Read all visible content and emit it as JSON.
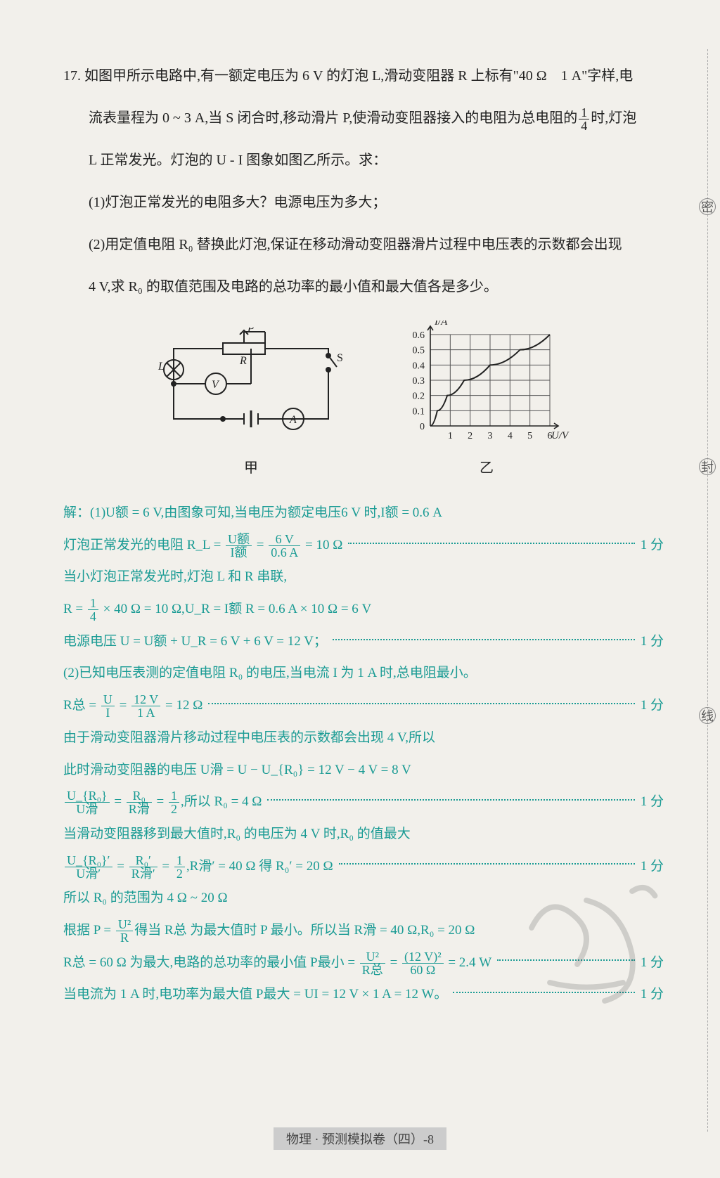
{
  "problem": {
    "number": "17.",
    "lines": [
      "如图甲所示电路中,有一额定电压为 6 V 的灯泡 L,滑动变阻器 R 上标有\"40 Ω　1 A\"字样,电",
      "流表量程为 0 ~ 3 A,当 S 闭合时,移动滑片 P,使滑动变阻器接入的电阻为总电阻的",
      "时,灯泡",
      "L 正常发光。灯泡的 U - I 图象如图乙所示。求：",
      "(1)灯泡正常发光的电阻多大？电源电压为多大；",
      "(2)用定值电阻 R₀ 替换此灯泡,保证在移动滑动变阻器滑片过程中电压表的示数都会出现",
      "4 V,求 R₀ 的取值范围及电路的总功率的最小值和最大值各是多少。"
    ],
    "frac_1_4": {
      "num": "1",
      "den": "4"
    }
  },
  "diagram_labels": {
    "left": "甲",
    "right": "乙"
  },
  "circuit": {
    "labels": {
      "L": "L",
      "V": "V",
      "A": "A",
      "P": "P",
      "R": "R",
      "S": "S"
    },
    "stroke": "#222",
    "stroke_width": 2
  },
  "graph": {
    "y_label": "I/A",
    "x_label": "U/V",
    "axis_color": "#222",
    "grid_color": "#555",
    "y_ticks": [
      "0.6",
      "0.5",
      "0.4",
      "0.3",
      "0.2",
      "0.1",
      "0"
    ],
    "x_ticks": [
      "1",
      "2",
      "3",
      "4",
      "5",
      "6"
    ],
    "curve_points": [
      [
        0,
        0
      ],
      [
        0.35,
        0.1
      ],
      [
        0.85,
        0.2
      ],
      [
        1.7,
        0.3
      ],
      [
        3.0,
        0.4
      ],
      [
        4.5,
        0.5
      ],
      [
        6.0,
        0.6
      ]
    ],
    "curve_color": "#222"
  },
  "solution": {
    "color": "#1a9b94",
    "score_label": "1 分",
    "lines": [
      {
        "text": "解：(1)U额 = 6 V,由图象可知,当电压为额定电压6 V 时,I额 = 0.6 A"
      },
      {
        "text_prefix": "灯泡正常发光的电阻 R_L = ",
        "frac1": {
          "num": "U额",
          "den": "I额"
        },
        "eq": " = ",
        "frac2": {
          "num": "6 V",
          "den": "0.6 A"
        },
        "suffix": " = 10 Ω",
        "score": true
      },
      {
        "text": "当小灯泡正常发光时,灯泡 L 和 R 串联,"
      },
      {
        "text_prefix": "R = ",
        "frac1": {
          "num": "1",
          "den": "4"
        },
        "suffix": " × 40 Ω = 10 Ω,U_R = I额 R = 0.6 A × 10 Ω = 6 V"
      },
      {
        "text": "电源电压 U = U额 + U_R = 6 V + 6 V = 12 V；",
        "score": true
      },
      {
        "text": "(2)已知电压表测的定值电阻 R₀ 的电压,当电流 I 为 1 A 时,总电阻最小。"
      },
      {
        "text_prefix": "R总 = ",
        "frac1": {
          "num": "U",
          "den": "I"
        },
        "eq": " = ",
        "frac2": {
          "num": "12 V",
          "den": "1 A"
        },
        "suffix": " = 12 Ω",
        "score": true
      },
      {
        "text": "由于滑动变阻器滑片移动过程中电压表的示数都会出现 4 V,所以"
      },
      {
        "text": "此时滑动变阻器的电压 U滑 = U − U_{R₀} = 12 V − 4 V = 8 V"
      },
      {
        "frac_left": {
          "num1": "U_{R₀}",
          "den1": "U滑",
          "eq1": " = ",
          "num2": "R₀",
          "den2": "R滑",
          "eq2": " = ",
          "num3": "1",
          "den3": "2"
        },
        "suffix": ",所以 R₀ = 4 Ω",
        "score": true
      },
      {
        "text": "当滑动变阻器移到最大值时,R₀ 的电压为 4 V 时,R₀ 的值最大"
      },
      {
        "frac_left": {
          "num1": "U_{R₀}′",
          "den1": "U滑′",
          "eq1": " = ",
          "num2": "R₀′",
          "den2": "R滑′",
          "eq2": " = ",
          "num3": "1",
          "den3": "2"
        },
        "suffix": ",R滑′ = 40 Ω 得 R₀′ = 20 Ω",
        "score": true
      },
      {
        "text": "所以 R₀ 的范围为 4 Ω ~ 20 Ω"
      },
      {
        "text_prefix": "根据 P = ",
        "frac1": {
          "num": "U²",
          "den": "R"
        },
        "suffix": "得当 R总 为最大值时 P 最小。所以当 R滑 = 40 Ω,R₀ = 20 Ω"
      },
      {
        "text_prefix": "R总 = 60 Ω 为最大,电路的总功率的最小值 P最小 = ",
        "frac1": {
          "num": "U²",
          "den": "R总"
        },
        "eq": " = ",
        "frac2": {
          "num": "(12 V)²",
          "den": "60 Ω"
        },
        "suffix": " = 2.4 W",
        "score": true
      },
      {
        "text": "当电流为 1 A 时,电功率为最大值 P最大 = UI = 12 V × 1 A = 12 W。",
        "score": true
      }
    ]
  },
  "margin_chars": {
    "mi": "密",
    "feng": "封",
    "xian": "线"
  },
  "footer": "物理 · 预测模拟卷（四）-8"
}
